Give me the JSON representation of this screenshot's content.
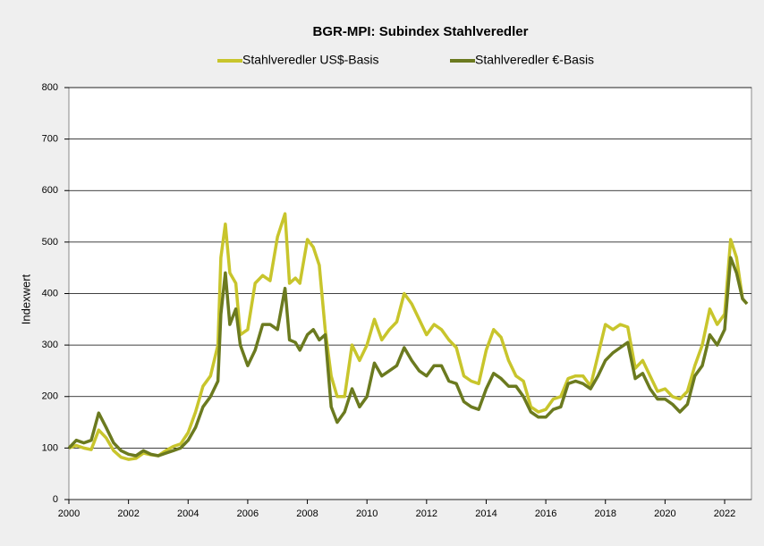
{
  "chart_data": {
    "type": "line",
    "title": "BGR-MPI:  Subindex Stahlveredler",
    "y_label": "Indexwert",
    "x": [
      2000,
      2000.25,
      2000.5,
      2000.75,
      2001,
      2001.25,
      2001.5,
      2001.75,
      2002,
      2002.25,
      2002.5,
      2002.75,
      2003,
      2003.25,
      2003.5,
      2003.75,
      2004,
      2004.25,
      2004.5,
      2004.75,
      2005,
      2005.1,
      2005.25,
      2005.4,
      2005.6,
      2005.75,
      2006,
      2006.25,
      2006.5,
      2006.75,
      2007,
      2007.25,
      2007.4,
      2007.6,
      2007.75,
      2008,
      2008.2,
      2008.4,
      2008.6,
      2008.8,
      2009,
      2009.25,
      2009.5,
      2009.75,
      2010,
      2010.25,
      2010.5,
      2010.75,
      2011,
      2011.25,
      2011.5,
      2011.75,
      2012,
      2012.25,
      2012.5,
      2012.75,
      2013,
      2013.25,
      2013.5,
      2013.75,
      2014,
      2014.25,
      2014.5,
      2014.75,
      2015,
      2015.25,
      2015.5,
      2015.75,
      2016,
      2016.25,
      2016.5,
      2016.75,
      2017,
      2017.25,
      2017.5,
      2017.75,
      2018,
      2018.25,
      2018.5,
      2018.75,
      2019,
      2019.25,
      2019.5,
      2019.75,
      2020,
      2020.25,
      2020.5,
      2020.75,
      2021,
      2021.25,
      2021.5,
      2021.75,
      2022,
      2022.2,
      2022.4,
      2022.6,
      2022.75
    ],
    "series": [
      {
        "name": "Stahlveredler US$-Basis",
        "color": "#c8c52c",
        "values": [
          100,
          105,
          100,
          97,
          135,
          120,
          95,
          82,
          78,
          80,
          90,
          87,
          85,
          95,
          103,
          108,
          130,
          170,
          220,
          240,
          300,
          470,
          535,
          440,
          420,
          320,
          330,
          420,
          435,
          425,
          510,
          555,
          420,
          430,
          420,
          505,
          490,
          455,
          330,
          240,
          200,
          200,
          300,
          270,
          300,
          350,
          310,
          330,
          345,
          400,
          380,
          350,
          320,
          340,
          330,
          310,
          295,
          240,
          230,
          225,
          290,
          330,
          315,
          270,
          240,
          230,
          180,
          170,
          175,
          195,
          200,
          235,
          240,
          240,
          220,
          280,
          340,
          330,
          340,
          335,
          255,
          270,
          240,
          210,
          215,
          200,
          195,
          210,
          260,
          300,
          370,
          340,
          360,
          505,
          470,
          390,
          380
        ]
      },
      {
        "name": "Stahlveredler €-Basis",
        "color": "#6b7a1f",
        "values": [
          100,
          115,
          110,
          115,
          168,
          140,
          110,
          95,
          88,
          85,
          95,
          88,
          85,
          90,
          95,
          100,
          115,
          140,
          180,
          200,
          230,
          360,
          440,
          340,
          370,
          300,
          260,
          290,
          340,
          340,
          330,
          410,
          310,
          305,
          290,
          320,
          330,
          310,
          320,
          180,
          150,
          170,
          215,
          180,
          200,
          265,
          240,
          250,
          260,
          295,
          270,
          250,
          240,
          260,
          260,
          230,
          225,
          190,
          180,
          175,
          215,
          245,
          235,
          220,
          220,
          200,
          170,
          160,
          160,
          175,
          180,
          225,
          230,
          225,
          215,
          240,
          270,
          285,
          295,
          305,
          235,
          245,
          215,
          195,
          195,
          185,
          170,
          185,
          240,
          260,
          320,
          300,
          330,
          470,
          440,
          390,
          380
        ]
      }
    ],
    "xlim": [
      2000,
      2022.9
    ],
    "xticks": [
      2000,
      2002,
      2004,
      2006,
      2008,
      2010,
      2012,
      2014,
      2016,
      2018,
      2020,
      2022
    ],
    "ylim": [
      0,
      800
    ],
    "yticks": [
      0,
      100,
      200,
      300,
      400,
      500,
      600,
      700,
      800
    ],
    "grid": true
  }
}
